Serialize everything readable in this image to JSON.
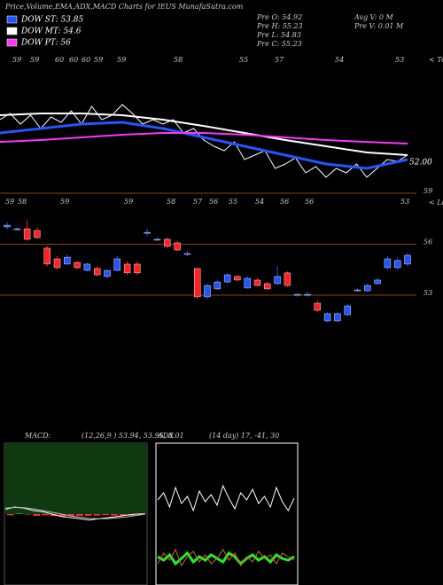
{
  "title": "Price,Volume,EMA,ADX,MACD Charts for IEUS MunafaSutra.com",
  "stats": [
    "Pre O: 54.92",
    "Pre H: 55.23",
    "Pre L: 54.83",
    "Pre C: 55.23",
    "Avg V: 0 M",
    "Pre V: 0.01 M"
  ],
  "chart_data": [
    {
      "type": "line",
      "ylim": [
        49.6,
        61.6
      ],
      "tops_labels": [
        "59",
        "59",
        "60",
        "60",
        "60",
        "59",
        "59",
        "58",
        "55",
        "57",
        "54",
        "53"
      ],
      "tops_marker": "< Tops",
      "price_label": {
        "value": 52,
        "label": "52.00"
      },
      "series": [
        {
          "color": "#ffffff",
          "values": [
            56.27,
            56.89,
            55.82,
            56.71,
            55.38,
            56.53,
            56.0,
            57.16,
            55.82,
            57.6,
            56.27,
            56.71,
            57.78,
            56.89,
            55.82,
            56.27,
            55.82,
            56.27,
            54.93,
            55.38,
            54.22,
            53.6,
            53.16,
            54.04,
            52.27,
            52.71,
            53.16,
            51.38,
            51.82,
            52.44,
            50.93,
            51.56,
            50.49,
            51.38,
            50.93,
            51.82,
            50.49,
            51.38,
            52.27,
            52.09,
            52.71
          ]
        },
        {
          "name": "DOW ST: 53.85",
          "color": "#2255ff",
          "values": [
            54.93,
            55.38,
            55.82,
            56.0,
            55.38,
            54.49,
            53.6,
            52.71,
            51.82,
            51.38,
            52.27
          ]
        },
        {
          "name": "DOW MT: 54.6",
          "color": "#ffffff",
          "values": [
            56.71,
            56.89,
            56.89,
            56.71,
            56.27,
            55.64,
            54.93,
            54.22,
            53.6,
            52.98,
            52.71
          ]
        },
        {
          "name": "DOW PT: 56",
          "color": "#ff33ff",
          "values": [
            54.04,
            54.22,
            54.49,
            54.76,
            54.93,
            54.93,
            54.76,
            54.49,
            54.22,
            54.04,
            53.87
          ]
        }
      ]
    },
    {
      "type": "candlestick",
      "ylim": [
        45.33,
        59.68
      ],
      "yticks": [
        53,
        56,
        59
      ],
      "lows_labels": [
        "59",
        "58",
        "59",
        "59",
        "58",
        "57",
        "56",
        "55",
        "54",
        "56",
        "56",
        "53"
      ],
      "lows_marker": "< Lows",
      "up_color": "#2255ff",
      "down_color": "#ff2222",
      "open": [
        57.02,
        56.91,
        56.91,
        56.81,
        55.77,
        55.14,
        54.83,
        54.93,
        54.46,
        54.57,
        54.1,
        54.46,
        54.83,
        54.83,
        56.7,
        56.29,
        56.29,
        56.08,
        55.45,
        54.57,
        52.9,
        53.37,
        53.78,
        54.1,
        53.42,
        53.89,
        53.68,
        53.68,
        54.31,
        53.05,
        53.05,
        52.53,
        51.49,
        51.49,
        51.85,
        53.31,
        53.26,
        53.68,
        54.62,
        54.62,
        54.83
      ],
      "high": [
        57.3,
        57.0,
        57.4,
        57.0,
        55.9,
        55.3,
        55.4,
        55.0,
        54.9,
        54.7,
        54.5,
        55.3,
        55.0,
        55.0,
        56.9,
        56.4,
        56.4,
        56.2,
        55.6,
        54.6,
        53.7,
        53.9,
        54.3,
        54.2,
        54.1,
        54.0,
        53.8,
        54.7,
        54.4,
        53.1,
        53.2,
        52.7,
        52.0,
        52.0,
        52.5,
        53.4,
        53.7,
        54.0,
        55.3,
        55.2,
        55.5
      ],
      "low": [
        56.9,
        56.8,
        56.2,
        56.3,
        54.7,
        54.5,
        54.8,
        54.5,
        54.4,
        54.1,
        54.0,
        54.4,
        54.2,
        54.2,
        56.5,
        56.2,
        55.8,
        55.6,
        55.3,
        52.8,
        52.8,
        53.3,
        53.7,
        53.8,
        53.4,
        53.5,
        53.3,
        53.6,
        53.5,
        52.9,
        52.9,
        52.0,
        51.4,
        51.4,
        51.8,
        53.2,
        53.2,
        53.6,
        54.5,
        54.5,
        54.7
      ],
      "close": [
        57.12,
        56.91,
        56.29,
        56.39,
        54.83,
        54.62,
        55.24,
        54.62,
        54.83,
        54.2,
        54.46,
        55.14,
        54.31,
        54.31,
        56.7,
        56.29,
        55.87,
        55.66,
        55.45,
        52.9,
        53.57,
        53.78,
        54.2,
        53.89,
        53.99,
        53.57,
        53.37,
        54.1,
        53.57,
        53.05,
        53.05,
        52.11,
        51.91,
        51.91,
        52.37,
        53.31,
        53.57,
        53.89,
        55.14,
        55.04,
        55.35
      ]
    },
    {
      "type": "macd",
      "label": "MACD:",
      "params": "(12,26,9 ) 53.94, 53.95, 0.01",
      "ylim": [
        -3,
        3
      ],
      "macd": [
        0.2,
        0.3,
        0.25,
        0.15,
        0.1,
        0.0,
        -0.1,
        -0.15,
        -0.2,
        -0.25,
        -0.2,
        -0.15,
        -0.1,
        -0.05,
        0.0,
        0.01
      ],
      "signal": [
        0.25,
        0.28,
        0.27,
        0.22,
        0.15,
        0.08,
        0.0,
        -0.08,
        -0.13,
        -0.18,
        -0.2,
        -0.19,
        -0.16,
        -0.12,
        -0.06,
        0.0
      ],
      "histogram": [
        -0.05,
        0.02,
        -0.02,
        -0.07,
        -0.05,
        -0.08,
        -0.1,
        -0.07,
        -0.07,
        -0.07,
        -0.06,
        -0.04,
        -0.06,
        -0.07,
        -0.06,
        -0.01
      ]
    },
    {
      "type": "adx",
      "label": "ADX",
      "params": "(14 day) 17, -41, 30",
      "ylim": [
        0,
        80
      ],
      "series": [
        {
          "color": "#ffffff",
          "values": [
            48,
            52,
            44,
            55,
            46,
            50,
            42,
            53,
            47,
            51,
            45,
            56,
            49,
            43,
            52,
            48,
            54,
            46,
            50,
            44,
            55,
            47,
            42,
            49
          ]
        },
        {
          "color": "#22ee22",
          "values": [
            16,
            14,
            17,
            12,
            15,
            18,
            13,
            16,
            14,
            17,
            15,
            13,
            18,
            16,
            12,
            15,
            17,
            14,
            16,
            13,
            17,
            15,
            14,
            16
          ]
        },
        {
          "color": "#d2691e",
          "values": [
            12,
            18,
            14,
            20,
            11,
            16,
            19,
            13,
            17,
            12,
            15,
            20,
            14,
            18,
            11,
            16,
            13,
            19,
            15,
            17,
            12,
            18,
            16,
            14
          ]
        }
      ]
    }
  ]
}
